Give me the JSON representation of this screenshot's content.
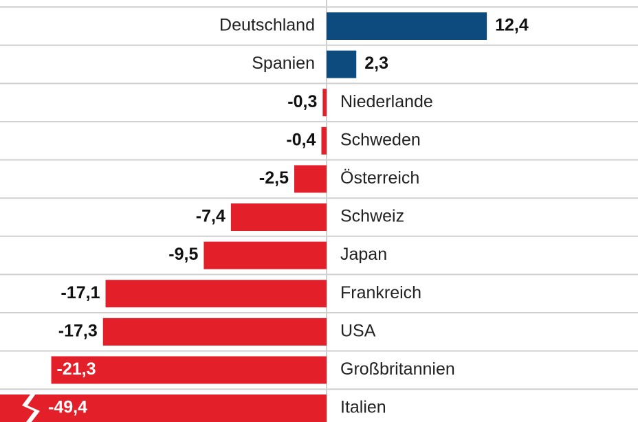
{
  "chart_data": {
    "type": "bar",
    "orientation": "horizontal",
    "categories": [
      "Deutschland",
      "Spanien",
      "Niederlande",
      "Schweden",
      "Österreich",
      "Schweiz",
      "Japan",
      "Frankreich",
      "USA",
      "Großbritannien",
      "Italien"
    ],
    "values": [
      12.4,
      2.3,
      -0.3,
      -0.4,
      -2.5,
      -7.4,
      -9.5,
      -17.1,
      -17.3,
      -21.3,
      -49.4
    ],
    "value_labels": [
      "12,4",
      "2,3",
      "-0,3",
      "-0,4",
      "-2,5",
      "-7,4",
      "-9,5",
      "-17,1",
      "-17,3",
      "-21,3",
      "-49,4"
    ],
    "positive_color": "#0d4a7e",
    "negative_color": "#e3202a",
    "grid": true
  }
}
